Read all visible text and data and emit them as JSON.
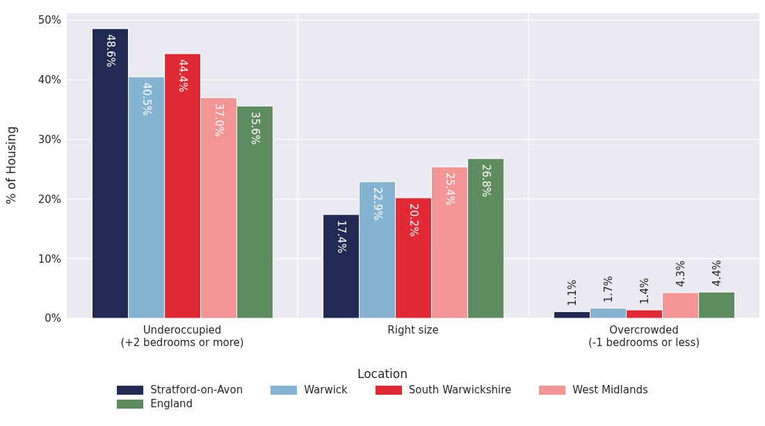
{
  "chart_data": {
    "type": "bar",
    "ylabel": "% of Housing",
    "legend_title": "Location",
    "categories": [
      "Underoccupied\n(+2 bedrooms or more)",
      "Right size",
      "Overcrowded\n(-1 bedrooms or less)"
    ],
    "series": [
      {
        "name": "Stratford-on-Avon",
        "color": "#212a52",
        "values": [
          48.6,
          17.4,
          1.1
        ],
        "value_labels": [
          "48.6%",
          "17.4%",
          "1.1%"
        ]
      },
      {
        "name": "Warwick",
        "color": "#85b4d3",
        "values": [
          40.5,
          22.9,
          1.7
        ],
        "value_labels": [
          "40.5%",
          "22.9%",
          "1.7%"
        ]
      },
      {
        "name": "South Warwickshire",
        "color": "#e12a35",
        "values": [
          44.4,
          20.2,
          1.4
        ],
        "value_labels": [
          "44.4%",
          "20.2%",
          "1.4%"
        ]
      },
      {
        "name": "West Midlands",
        "color": "#f29594",
        "values": [
          37.0,
          25.4,
          4.3
        ],
        "value_labels": [
          "37.0%",
          "25.4%",
          "4.3%"
        ]
      },
      {
        "name": "England",
        "color": "#5e8c5e",
        "values": [
          35.6,
          26.8,
          4.4
        ],
        "value_labels": [
          "35.6%",
          "26.8%",
          "4.4%"
        ]
      }
    ],
    "ylim": [
      0,
      51.3
    ],
    "yticks": [
      {
        "value": 0,
        "label": "0%"
      },
      {
        "value": 10,
        "label": "10%"
      },
      {
        "value": 20,
        "label": "20%"
      },
      {
        "value": 30,
        "label": "30%"
      },
      {
        "value": 40,
        "label": "40%"
      },
      {
        "value": 50,
        "label": "50%"
      }
    ],
    "grid": true,
    "legend": "bottom"
  }
}
